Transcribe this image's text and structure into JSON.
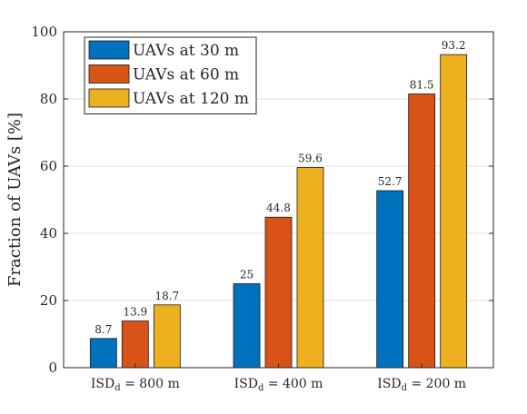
{
  "chart_data": {
    "type": "bar",
    "categories": [
      {
        "label": "ISD",
        "subscript": "d",
        "suffix": " = 800 m"
      },
      {
        "label": "ISD",
        "subscript": "d",
        "suffix": " = 400 m"
      },
      {
        "label": "ISD",
        "subscript": "d",
        "suffix": " = 200 m"
      }
    ],
    "series": [
      {
        "name": "UAVs at 30 m",
        "color": "#0072BD",
        "values": [
          8.7,
          25,
          52.7
        ],
        "labels": [
          "8.7",
          "25",
          "52.7"
        ]
      },
      {
        "name": "UAVs at 60 m",
        "color": "#D95319",
        "values": [
          13.9,
          44.8,
          81.5
        ],
        "labels": [
          "13.9",
          "44.8",
          "81.5"
        ]
      },
      {
        "name": "UAVs at 120 m",
        "color": "#EDB120",
        "values": [
          18.7,
          59.6,
          93.2
        ],
        "labels": [
          "18.7",
          "59.6",
          "93.2"
        ]
      }
    ],
    "title": "",
    "xlabel": "",
    "ylabel": "Fraction of UAVs [%]",
    "ylim": [
      0,
      100
    ],
    "yticks": [
      0,
      20,
      40,
      60,
      80,
      100
    ],
    "grid": "horizontal",
    "legend_position": "top-left"
  }
}
